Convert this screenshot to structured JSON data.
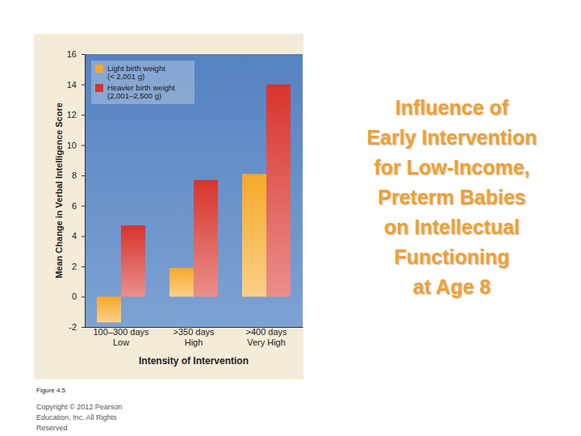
{
  "chart_data": {
    "type": "bar",
    "title": "Influence of\nEarly Intervention\nfor Low-Income,\nPreterm Babies\non Intellectual\nFunctioning\nat Age 8",
    "xlabel": "Intensity of Intervention",
    "ylabel": "Mean Change in Verbal Intelligence Score",
    "categories": [
      "100–300 days\nLow",
      ">350 days\nHigh",
      ">400 days\nVery High"
    ],
    "series": [
      {
        "name": "Light birth weight\n(< 2,001 g)",
        "color": "#f7a928",
        "values": [
          -1.7,
          1.9,
          8.1
        ]
      },
      {
        "name": "Heavier birth weight\n(2,001–2,500 g)",
        "color": "#d8342c",
        "values": [
          4.7,
          7.7,
          14
        ]
      }
    ],
    "ylim": [
      -2,
      16
    ],
    "yticks": [
      -2,
      0,
      2,
      4,
      6,
      8,
      10,
      12,
      14,
      16
    ],
    "grid": false,
    "legend": "upper left",
    "annotations": [
      "Figure 4.5",
      "Copyright © 2012 Pearson\nEducation, Inc. All Rights\nReserved"
    ]
  }
}
